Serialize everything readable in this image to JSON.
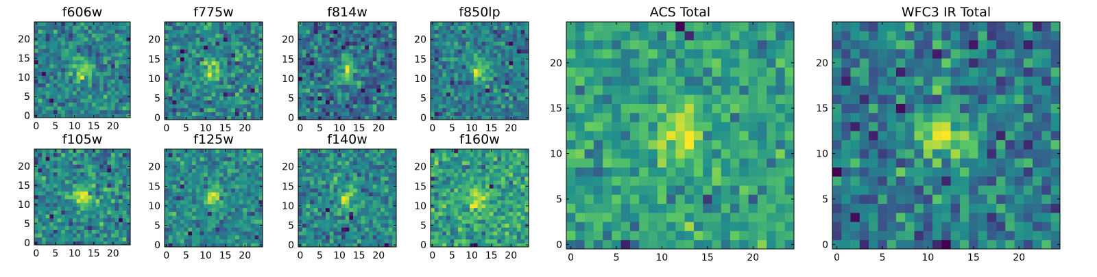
{
  "chart_data": [
    {
      "type": "heatmap",
      "title": "f606w",
      "xticks": [
        0,
        5,
        10,
        15,
        20
      ],
      "yticks": [
        0,
        5,
        10,
        15,
        20
      ],
      "xlim": [
        0,
        25
      ],
      "ylim": [
        0,
        25
      ],
      "grid_size": 25,
      "colormap": [
        "#440154",
        "#3b528b",
        "#21908d",
        "#5dc963",
        "#fde725"
      ],
      "seed": 11
    },
    {
      "type": "heatmap",
      "title": "f775w",
      "xticks": [
        0,
        5,
        10,
        15,
        20
      ],
      "yticks": [
        0,
        5,
        10,
        15,
        20
      ],
      "xlim": [
        0,
        25
      ],
      "ylim": [
        0,
        25
      ],
      "grid_size": 25,
      "colormap": [
        "#440154",
        "#3b528b",
        "#21908d",
        "#5dc963",
        "#fde725"
      ],
      "seed": 23
    },
    {
      "type": "heatmap",
      "title": "f814w",
      "xticks": [
        0,
        5,
        10,
        15,
        20
      ],
      "yticks": [
        0,
        5,
        10,
        15,
        20
      ],
      "xlim": [
        0,
        25
      ],
      "ylim": [
        0,
        25
      ],
      "grid_size": 25,
      "colormap": [
        "#440154",
        "#3b528b",
        "#21908d",
        "#5dc963",
        "#fde725"
      ],
      "seed": 37
    },
    {
      "type": "heatmap",
      "title": "f850lp",
      "xticks": [
        0,
        5,
        10,
        15,
        20
      ],
      "yticks": [
        0,
        5,
        10,
        15,
        20
      ],
      "xlim": [
        0,
        25
      ],
      "ylim": [
        0,
        25
      ],
      "grid_size": 25,
      "colormap": [
        "#440154",
        "#3b528b",
        "#21908d",
        "#5dc963",
        "#fde725"
      ],
      "seed": 41
    },
    {
      "type": "heatmap",
      "title": "f105w",
      "xticks": [
        0,
        5,
        10,
        15,
        20
      ],
      "yticks": [
        0,
        5,
        10,
        15,
        20
      ],
      "xlim": [
        0,
        25
      ],
      "ylim": [
        0,
        25
      ],
      "grid_size": 25,
      "colormap": [
        "#440154",
        "#3b528b",
        "#21908d",
        "#5dc963",
        "#fde725"
      ],
      "seed": 53
    },
    {
      "type": "heatmap",
      "title": "f125w",
      "xticks": [
        0,
        5,
        10,
        15,
        20
      ],
      "yticks": [
        0,
        5,
        10,
        15,
        20
      ],
      "xlim": [
        0,
        25
      ],
      "ylim": [
        0,
        25
      ],
      "grid_size": 25,
      "colormap": [
        "#440154",
        "#3b528b",
        "#21908d",
        "#5dc963",
        "#fde725"
      ],
      "seed": 67
    },
    {
      "type": "heatmap",
      "title": "f140w",
      "xticks": [
        0,
        5,
        10,
        15,
        20
      ],
      "yticks": [
        0,
        5,
        10,
        15,
        20
      ],
      "xlim": [
        0,
        25
      ],
      "ylim": [
        0,
        25
      ],
      "grid_size": 25,
      "colormap": [
        "#440154",
        "#3b528b",
        "#21908d",
        "#5dc963",
        "#fde725"
      ],
      "seed": 71
    },
    {
      "type": "heatmap",
      "title": "f160w",
      "xticks": [
        0,
        5,
        10,
        15,
        20
      ],
      "yticks": [
        0,
        5,
        10,
        15,
        20
      ],
      "xlim": [
        0,
        25
      ],
      "ylim": [
        0,
        25
      ],
      "grid_size": 25,
      "colormap": [
        "#440154",
        "#3b528b",
        "#21908d",
        "#5dc963",
        "#fde725"
      ],
      "seed": 83
    },
    {
      "type": "heatmap",
      "title": "ACS Total",
      "xticks": [
        0,
        5,
        10,
        15,
        20
      ],
      "yticks": [
        0,
        5,
        10,
        15,
        20
      ],
      "xlim": [
        0,
        25
      ],
      "ylim": [
        0,
        25
      ],
      "grid_size": 25,
      "colormap": [
        "#440154",
        "#3b528b",
        "#21908d",
        "#5dc963",
        "#fde725"
      ],
      "seed": 97
    },
    {
      "type": "heatmap",
      "title": "WFC3 IR Total",
      "xticks": [
        0,
        5,
        10,
        15,
        20
      ],
      "yticks": [
        0,
        5,
        10,
        15,
        20
      ],
      "xlim": [
        0,
        25
      ],
      "ylim": [
        0,
        25
      ],
      "grid_size": 25,
      "colormap": [
        "#440154",
        "#3b528b",
        "#21908d",
        "#5dc963",
        "#fde725"
      ],
      "seed": 101
    }
  ]
}
